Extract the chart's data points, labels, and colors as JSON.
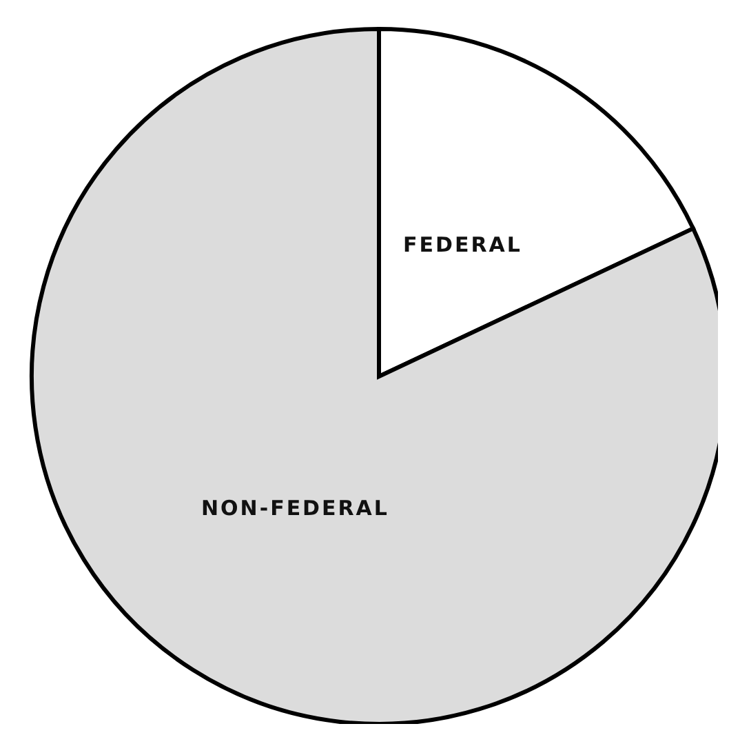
{
  "chart_data": {
    "type": "pie",
    "categories": [
      "FEDERAL",
      "NON-FEDERAL"
    ],
    "values": [
      18,
      82
    ],
    "colors": [
      "#ffffff",
      "#dcdcdc"
    ]
  }
}
